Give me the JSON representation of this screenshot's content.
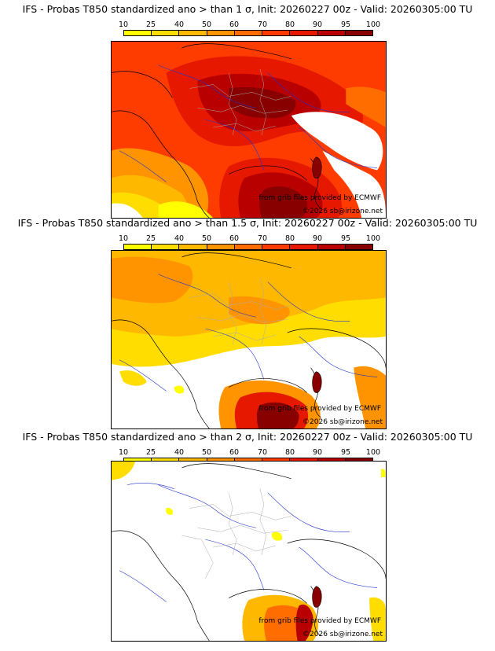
{
  "panels": [
    {
      "title": "IFS - Probas T850  standardized ano > than 1 σ, Init: 20260227 00z - Valid: 20260305:00 TU",
      "credit_line1": "from grib files provided by ECMWF",
      "credit_line2": "©2026 sb@irizone.net"
    },
    {
      "title": "IFS - Probas T850  standardized ano > than 1.5 σ, Init: 20260227 00z - Valid: 20260305:00 TU",
      "credit_line1": "from grib files provided by ECMWF",
      "credit_line2": "©2026 sb@irizone.net"
    },
    {
      "title": "IFS - Probas T850  standardized ano > than 2 σ, Init: 20260227 00z - Valid: 20260305:00 TU",
      "credit_line1": "from grib files provided by ECMWF",
      "credit_line2": "©2026 sb@irizone.net"
    }
  ],
  "legend": {
    "ticks": [
      "10",
      "25",
      "40",
      "50",
      "60",
      "70",
      "80",
      "90",
      "95",
      "100"
    ],
    "colors": [
      "#ffff00",
      "#ffdd00",
      "#ffb800",
      "#ff9400",
      "#ff6d00",
      "#ff3c00",
      "#e61800",
      "#b80000",
      "#880000"
    ]
  },
  "map_colors": {
    "sea_border": "#2233cc",
    "country_border": "#000000",
    "admin_border": "#aaaaaa"
  }
}
